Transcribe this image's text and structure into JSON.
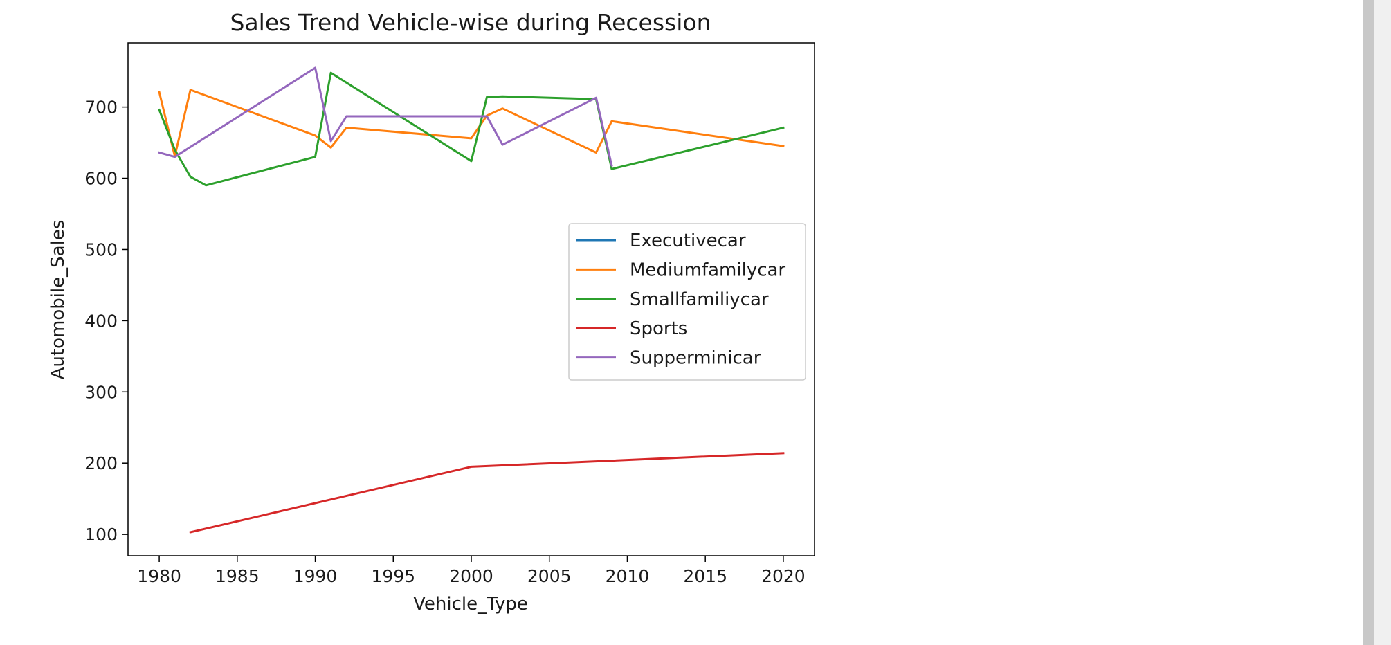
{
  "chart_data": {
    "type": "line",
    "title": "Sales Trend Vehicle-wise during Recession",
    "xlabel": "Vehicle_Type",
    "ylabel": "Automobile_Sales",
    "xlim": [
      1978,
      2022
    ],
    "ylim": [
      70,
      790
    ],
    "xticks": [
      1980,
      1985,
      1990,
      1995,
      2000,
      2005,
      2010,
      2015,
      2020
    ],
    "yticks": [
      100,
      200,
      300,
      400,
      500,
      600,
      700
    ],
    "legend_position": "center-right",
    "grid": false,
    "series": [
      {
        "name": "Executivecar",
        "color": "#1f77b4",
        "points": []
      },
      {
        "name": "Mediumfamilycar",
        "color": "#ff7f0e",
        "points": [
          [
            1980,
            721
          ],
          [
            1981,
            631
          ],
          [
            1982,
            724
          ],
          [
            1990,
            660
          ],
          [
            1991,
            643
          ],
          [
            1992,
            671
          ],
          [
            2000,
            656
          ],
          [
            2001,
            688
          ],
          [
            2002,
            698
          ],
          [
            2008,
            636
          ],
          [
            2009,
            680
          ],
          [
            2020,
            645
          ]
        ]
      },
      {
        "name": "Smallfamiliycar",
        "color": "#2ca02c",
        "points": [
          [
            1980,
            696
          ],
          [
            1981,
            640
          ],
          [
            1982,
            602
          ],
          [
            1983,
            590
          ],
          [
            1990,
            630
          ],
          [
            1991,
            748
          ],
          [
            2000,
            624
          ],
          [
            2001,
            714
          ],
          [
            2002,
            715
          ],
          [
            2008,
            711
          ],
          [
            2009,
            613
          ],
          [
            2020,
            671
          ]
        ]
      },
      {
        "name": "Sports",
        "color": "#d62728",
        "points": [
          [
            1982,
            103
          ],
          [
            2000,
            195
          ],
          [
            2020,
            214
          ]
        ]
      },
      {
        "name": "Supperminicar",
        "color": "#9467bd",
        "points": [
          [
            1980,
            636
          ],
          [
            1981,
            630
          ],
          [
            1990,
            755
          ],
          [
            1991,
            652
          ],
          [
            1992,
            687
          ],
          [
            2001,
            687
          ],
          [
            2002,
            647
          ],
          [
            2008,
            713
          ],
          [
            2009,
            618
          ]
        ]
      }
    ]
  }
}
